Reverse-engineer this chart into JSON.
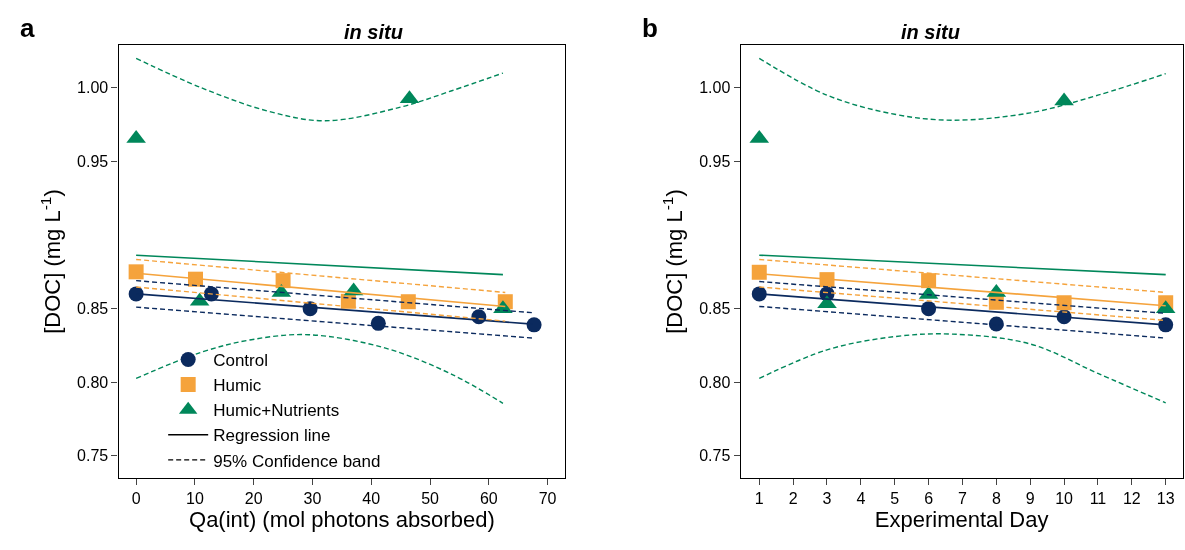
{
  "chart_data": [
    {
      "type": "scatter",
      "title": "in situ",
      "annotations": [
        "a"
      ],
      "xlabel": "Qa(int) (mol photons absorbed)",
      "ylabel": "[DOC] (mg L$^{-1}$)",
      "xlim": [
        -3,
        73
      ],
      "xticks": [
        0,
        10,
        20,
        30,
        40,
        50,
        60,
        70
      ],
      "ylim": [
        0.735,
        1.029
      ],
      "yticks": [
        {
          "value": 0.75,
          "label": "0.75"
        },
        {
          "value": 0.8,
          "label": "0.80"
        },
        {
          "value": 0.85,
          "label": "0.85"
        },
        {
          "value": 0.95,
          "label": "0.95"
        },
        {
          "value": 1.0,
          "label": "1.00"
        }
      ],
      "grid": false,
      "legend": "bottom left",
      "series": [
        {
          "name": "Control",
          "marker": "circle",
          "color": "#0b2a5e",
          "x": [
            0,
            12.8,
            29.6,
            41.2,
            58.3,
            67.7
          ],
          "values": [
            0.86,
            0.86,
            0.85,
            0.84,
            0.8445,
            0.839
          ]
        },
        {
          "name": "Humic",
          "marker": "square",
          "color": "#f5a33c",
          "x": [
            0,
            10.1,
            25,
            36.1,
            46.3,
            62.8
          ],
          "values": [
            0.875,
            0.87,
            0.869,
            0.855,
            0.8547,
            0.8547
          ]
        },
        {
          "name": "Humic+Nutrients",
          "marker": "triangle",
          "color": "#00875a",
          "x": [
            0,
            10.8,
            24.7,
            37,
            46.5,
            62.4
          ],
          "values": [
            0.9656,
            0.855,
            0.861,
            0.862,
            0.9926,
            0.85
          ]
        },
        {
          "name": "Regression line",
          "type": "line",
          "line_style": "solid",
          "color": "#000000"
        },
        {
          "name": "95% Confidence band",
          "type": "line",
          "line_style": "dashed",
          "color": "#000000"
        },
        {
          "type": "line",
          "line_style": "solid",
          "color": "#0b2a5e",
          "x": [
            0,
            67.5
          ],
          "values": [
            0.86,
            0.8395
          ]
        },
        {
          "type": "line",
          "line_style": "dashed",
          "color": "#0b2a5e",
          "x": [
            0,
            67.5
          ],
          "values": [
            0.869,
            0.8472
          ]
        },
        {
          "type": "line",
          "line_style": "dashed",
          "color": "#0b2a5e",
          "x": [
            0,
            67.5
          ],
          "values": [
            0.851,
            0.83
          ]
        },
        {
          "type": "line",
          "line_style": "solid",
          "color": "#f5a33c",
          "x": [
            0,
            62.8
          ],
          "values": [
            0.874,
            0.8515
          ]
        },
        {
          "type": "line",
          "line_style": "dashed",
          "color": "#f5a33c",
          "x": [
            0,
            62.8
          ],
          "values": [
            0.8834,
            0.861
          ]
        },
        {
          "type": "line",
          "line_style": "dashed",
          "color": "#f5a33c",
          "x": [
            0,
            62.8
          ],
          "values": [
            0.8647,
            0.8415
          ]
        },
        {
          "type": "line",
          "line_style": "solid",
          "color": "#00875a",
          "x": [
            0,
            62.4
          ],
          "values": [
            0.8863,
            0.8731
          ]
        },
        {
          "type": "line",
          "line_style": "dashed",
          "color": "#00875a",
          "x": [
            0,
            11.1,
            22.4,
            32.2,
            45.1,
            53.7,
            62.4
          ],
          "values": [
            1.02,
            1.0,
            0.9842,
            0.9776,
            0.987,
            0.998,
            1.01
          ]
        },
        {
          "type": "line",
          "line_style": "dashed",
          "color": "#00875a",
          "x": [
            0,
            11.1,
            19.6,
            29.3,
            42.3,
            53.7,
            62.4
          ],
          "values": [
            0.8026,
            0.8204,
            0.8289,
            0.8323,
            0.8233,
            0.8054,
            0.7857
          ]
        }
      ]
    },
    {
      "type": "scatter",
      "title": "in situ",
      "annotations": [
        "b"
      ],
      "xlabel": "Experimental Day",
      "ylabel": "[DOC] (mg L$^{-1}$)",
      "xlim": [
        0.45,
        13.5
      ],
      "xticks": [
        1,
        2,
        3,
        4,
        5,
        6,
        7,
        8,
        9,
        10,
        11,
        12,
        13
      ],
      "ylim": [
        0.735,
        1.029
      ],
      "yticks": [
        {
          "value": 0.75,
          "label": "0.75"
        },
        {
          "value": 0.8,
          "label": "0.80"
        },
        {
          "value": 0.85,
          "label": "0.85"
        },
        {
          "value": 0.95,
          "label": "0.95"
        },
        {
          "value": 1.0,
          "label": "1.00"
        }
      ],
      "grid": false,
      "series": [
        {
          "marker": "circle",
          "color": "#0b2a5e",
          "x": [
            1,
            3,
            6,
            8,
            10,
            13
          ],
          "values": [
            0.86,
            0.86,
            0.85,
            0.8396,
            0.8445,
            0.839
          ]
        },
        {
          "marker": "square",
          "color": "#f5a33c",
          "x": [
            1,
            3,
            6,
            8,
            10,
            13
          ],
          "values": [
            0.8747,
            0.8697,
            0.869,
            0.8543,
            0.854,
            0.854
          ]
        },
        {
          "marker": "triangle",
          "color": "#00875a",
          "x": [
            1,
            3,
            6,
            8,
            10,
            13
          ],
          "values": [
            0.9656,
            0.8534,
            0.8596,
            0.861,
            0.991,
            0.85
          ]
        },
        {
          "type": "line",
          "line_style": "solid",
          "color": "#0b2a5e",
          "x": [
            1,
            13
          ],
          "values": [
            0.86,
            0.839
          ]
        },
        {
          "type": "line",
          "line_style": "dashed",
          "color": "#0b2a5e",
          "x": [
            1,
            13
          ],
          "values": [
            0.8684,
            0.8468
          ]
        },
        {
          "type": "line",
          "line_style": "dashed",
          "color": "#0b2a5e",
          "x": [
            1,
            13
          ],
          "values": [
            0.8515,
            0.83
          ]
        },
        {
          "type": "line",
          "line_style": "solid",
          "color": "#f5a33c",
          "x": [
            1,
            13
          ],
          "values": [
            0.8737,
            0.852
          ]
        },
        {
          "type": "line",
          "line_style": "dashed",
          "color": "#f5a33c",
          "x": [
            1,
            13
          ],
          "values": [
            0.8834,
            0.861
          ]
        },
        {
          "type": "line",
          "line_style": "dashed",
          "color": "#f5a33c",
          "x": [
            1,
            13
          ],
          "values": [
            0.8647,
            0.842
          ]
        },
        {
          "type": "line",
          "line_style": "solid",
          "color": "#00875a",
          "x": [
            1,
            13
          ],
          "values": [
            0.8863,
            0.8731
          ]
        },
        {
          "type": "line",
          "line_style": "dashed",
          "color": "#00875a",
          "x": [
            1,
            3,
            5,
            6.7,
            9,
            11,
            13
          ],
          "values": [
            1.02,
            0.995,
            0.982,
            0.978,
            0.983,
            0.995,
            1.0096
          ]
        },
        {
          "type": "line",
          "line_style": "dashed",
          "color": "#00875a",
          "x": [
            1,
            3,
            5,
            6.7,
            9,
            11,
            13
          ],
          "values": [
            0.8026,
            0.822,
            0.831,
            0.8327,
            0.826,
            0.806,
            0.786
          ]
        }
      ]
    }
  ]
}
